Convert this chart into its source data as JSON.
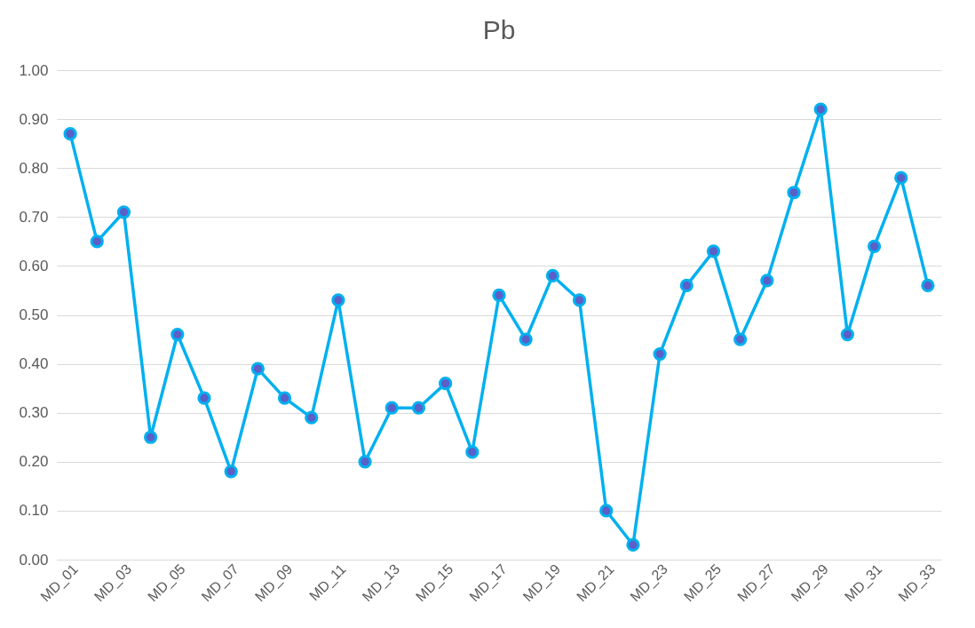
{
  "chart_data": {
    "type": "line",
    "title": "Pb",
    "categories": [
      "MD_01",
      null,
      "MD_03",
      null,
      "MD_05",
      null,
      "MD_07",
      null,
      "MD_09",
      null,
      "MD_11",
      null,
      "MD_13",
      null,
      "MD_15",
      null,
      "MD_17",
      null,
      "MD_19",
      null,
      "MD_21",
      null,
      "MD_23",
      null,
      "MD_25",
      null,
      "MD_27",
      null,
      "MD_29",
      null,
      "MD_31",
      null,
      "MD_33"
    ],
    "series": [
      {
        "color": "#00b0f0",
        "values": [
          0.87,
          0.65,
          0.71,
          0.25,
          0.46,
          0.33,
          0.18,
          0.39,
          0.33,
          0.29,
          0.53,
          0.2,
          0.31,
          0.31,
          0.36,
          0.22,
          0.54,
          0.45,
          0.58,
          0.53,
          0.1,
          0.03,
          0.42,
          0.56,
          0.63,
          0.45,
          0.57,
          0.75,
          0.92,
          0.46,
          0.64,
          0.78,
          0.56
        ]
      }
    ],
    "ylim": [
      0,
      1
    ],
    "yticks": [
      {
        "value": 0,
        "label": "0.00"
      },
      {
        "value": 0.1,
        "label": "0.10"
      },
      {
        "value": 0.2,
        "label": "0.20"
      },
      {
        "value": 0.3,
        "label": "0.30"
      },
      {
        "value": 0.4,
        "label": "0.40"
      },
      {
        "value": 0.5,
        "label": "0.50"
      },
      {
        "value": 0.6,
        "label": "0.60"
      },
      {
        "value": 0.7,
        "label": "0.70"
      },
      {
        "value": 0.8,
        "label": "0.80"
      },
      {
        "value": 0.9,
        "label": "0.90"
      },
      {
        "value": 1,
        "label": "1.00"
      }
    ],
    "grid": "y",
    "marker": "circle",
    "line_style": "solid"
  }
}
